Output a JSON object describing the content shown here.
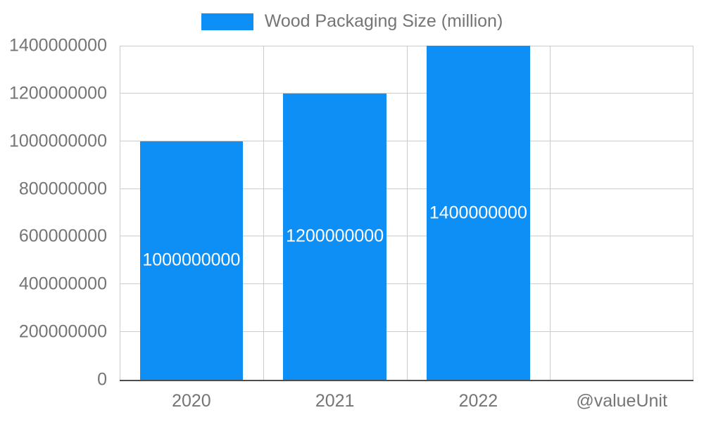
{
  "chart_data": {
    "type": "bar",
    "legend": "Wood Packaging Size (million)",
    "legend_position": "top",
    "categories": [
      "2020",
      "2021",
      "2022",
      "@valueUnit"
    ],
    "values": [
      1000000000,
      1200000000,
      1400000000,
      null
    ],
    "bar_labels": [
      "1000000000",
      "1200000000",
      "1400000000",
      ""
    ],
    "ylim": [
      0,
      1400000000
    ],
    "ytick_step": 200000000,
    "ytick_labels": [
      "0",
      "200000000",
      "400000000",
      "600000000",
      "800000000",
      "1000000000",
      "1200000000",
      "1400000000"
    ],
    "grid": true
  },
  "colors": {
    "bar": "#0d8ff5",
    "text": "#757575",
    "grid": "#cccccc",
    "axis": "#4d4d4d",
    "bar_label": "#ffffff",
    "background": "#ffffff"
  }
}
